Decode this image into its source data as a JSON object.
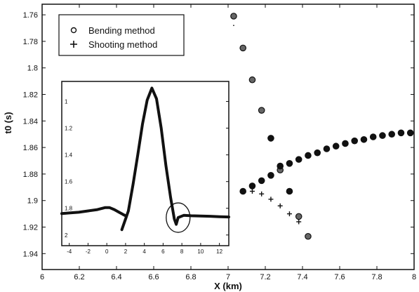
{
  "chart_data": {
    "type": "scatter",
    "xlabel": "X (km)",
    "ylabel": "t0 (s)",
    "xlim": [
      6,
      8
    ],
    "ylim": [
      1.95,
      1.75
    ],
    "y_axis_inverted": true,
    "x_ticks": [
      "6",
      "6.2",
      "6.4",
      "6.6",
      "6.8",
      "7",
      "7.2",
      "7.4",
      "7.6",
      "7.8",
      "8"
    ],
    "y_ticks": [
      "1.76",
      "1.78",
      "1.8",
      "1.82",
      "1.84",
      "1.86",
      "1.88",
      "1.9",
      "1.92",
      "1.94"
    ],
    "grid": false,
    "legend_position": "top-left",
    "series": [
      {
        "name": "Bending method",
        "marker": "circle",
        "points": [
          [
            7.03,
            1.761
          ],
          [
            7.08,
            1.785
          ],
          [
            7.13,
            1.809
          ],
          [
            7.18,
            1.832
          ],
          [
            7.23,
            1.853
          ],
          [
            7.28,
            1.877
          ],
          [
            7.33,
            1.893
          ],
          [
            7.38,
            1.912
          ],
          [
            7.43,
            1.927
          ],
          [
            7.08,
            1.893
          ],
          [
            7.13,
            1.889
          ],
          [
            7.18,
            1.885
          ],
          [
            7.23,
            1.881
          ],
          [
            7.28,
            1.874
          ],
          [
            7.33,
            1.872
          ],
          [
            7.38,
            1.869
          ],
          [
            7.43,
            1.866
          ],
          [
            7.48,
            1.864
          ],
          [
            7.53,
            1.861
          ],
          [
            7.58,
            1.859
          ],
          [
            7.63,
            1.857
          ],
          [
            7.68,
            1.855
          ],
          [
            7.73,
            1.854
          ],
          [
            7.78,
            1.852
          ],
          [
            7.83,
            1.851
          ],
          [
            7.88,
            1.85
          ],
          [
            7.93,
            1.849
          ],
          [
            7.98,
            1.849
          ]
        ]
      },
      {
        "name": "Shooting method",
        "marker": "plus",
        "points": [
          [
            7.03,
            1.768
          ],
          [
            7.13,
            1.893
          ],
          [
            7.18,
            1.895
          ],
          [
            7.23,
            1.899
          ],
          [
            7.28,
            1.904
          ],
          [
            7.33,
            1.91
          ],
          [
            7.38,
            1.916
          ]
        ]
      }
    ],
    "inset": {
      "type": "line",
      "xlim": [
        -4.8,
        13
      ],
      "ylim": [
        2.05,
        0.9
      ],
      "y_axis_inverted": true,
      "x_ticks": [
        "-4",
        "-2",
        "0",
        "2",
        "4",
        "6",
        "8",
        "10",
        "12"
      ],
      "y_ticks": [
        "1",
        "1.2",
        "1.4",
        "1.6",
        "1.8",
        "2"
      ],
      "curve": [
        [
          -4.8,
          1.84
        ],
        [
          -4,
          1.835
        ],
        [
          -3,
          1.83
        ],
        [
          -2,
          1.82
        ],
        [
          -1,
          1.81
        ],
        [
          -0.2,
          1.795
        ],
        [
          0.3,
          1.795
        ],
        [
          0.8,
          1.81
        ],
        [
          1.3,
          1.83
        ],
        [
          1.7,
          1.845
        ],
        [
          2.1,
          1.86
        ],
        [
          1.6,
          1.96
        ],
        [
          2.3,
          1.82
        ],
        [
          2.8,
          1.62
        ],
        [
          3.3,
          1.4
        ],
        [
          3.8,
          1.17
        ],
        [
          4.3,
          0.99
        ],
        [
          4.8,
          0.9
        ],
        [
          5.3,
          0.98
        ],
        [
          5.8,
          1.2
        ],
        [
          6.3,
          1.48
        ],
        [
          6.8,
          1.72
        ],
        [
          7.2,
          1.88
        ],
        [
          7.4,
          1.92
        ],
        [
          7.6,
          1.87
        ],
        [
          8.2,
          1.853
        ],
        [
          9,
          1.856
        ],
        [
          10,
          1.858
        ],
        [
          11,
          1.86
        ],
        [
          12,
          1.863
        ],
        [
          13,
          1.865
        ]
      ],
      "highlight_circle": {
        "x": 7.6,
        "y": 1.87
      }
    }
  }
}
